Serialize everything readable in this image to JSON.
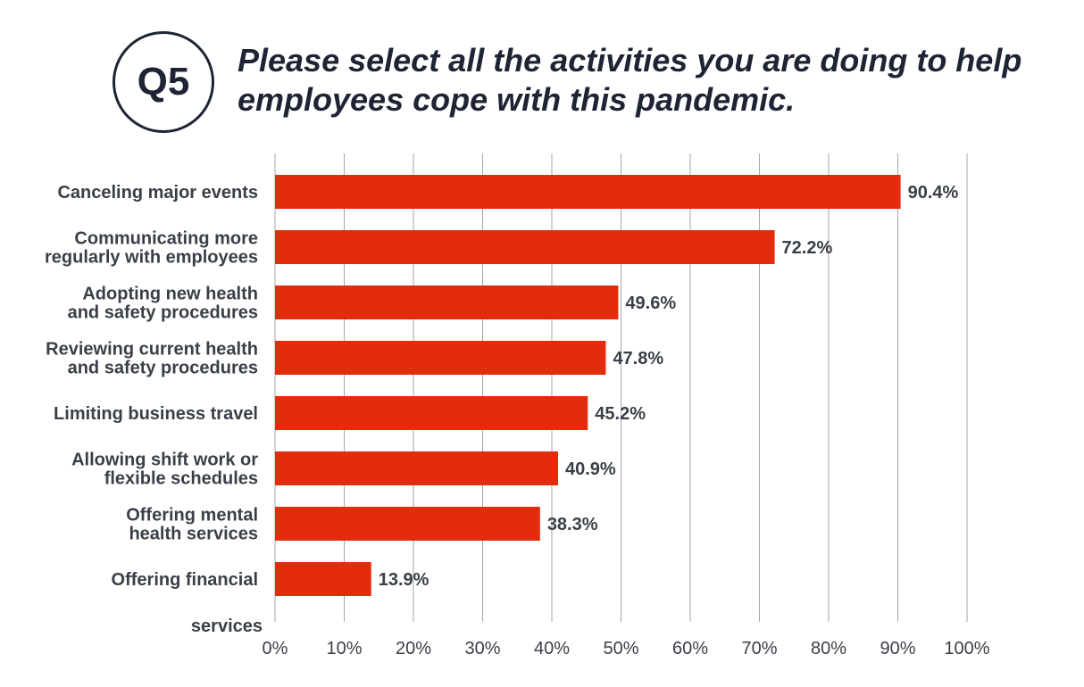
{
  "header": {
    "badge": "Q5",
    "title": "Please select all the activities you are doing to help employees cope with this pandemic."
  },
  "chart_data": {
    "type": "bar",
    "orientation": "horizontal",
    "categories": [
      [
        "Canceling major events"
      ],
      [
        "Communicating more",
        "regularly with employees"
      ],
      [
        "Adopting new health",
        "and safety procedures"
      ],
      [
        "Reviewing current health",
        "and safety procedures"
      ],
      [
        "Limiting business travel"
      ],
      [
        "Allowing shift work or",
        "flexible schedules"
      ],
      [
        "Offering mental",
        "health services"
      ],
      [
        "Offering financial"
      ]
    ],
    "stray_label": "services",
    "values": [
      90.4,
      72.2,
      49.6,
      47.8,
      45.2,
      40.9,
      38.3,
      13.9
    ],
    "value_labels": [
      "90.4%",
      "72.2%",
      "49.6%",
      "47.8%",
      "45.2%",
      "40.9%",
      "38.3%",
      "13.9%"
    ],
    "xlim": [
      0,
      100
    ],
    "xticks": [
      "0%",
      "10%",
      "20%",
      "30%",
      "40%",
      "50%",
      "60%",
      "70%",
      "80%",
      "90%",
      "100%"
    ],
    "grid": true,
    "bar_color": "#e22c0b",
    "grid_color": "#a6a6a6"
  }
}
